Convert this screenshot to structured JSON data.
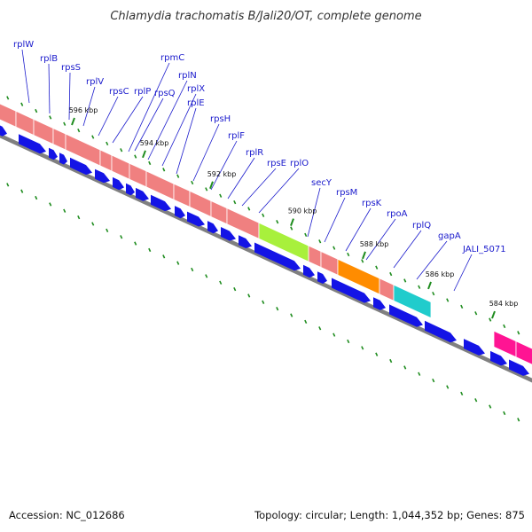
{
  "title": "Chlamydia trachomatis B/Jali20/OT, complete genome",
  "genes": [
    {
      "label": "rplW"
    },
    {
      "label": "rplB"
    },
    {
      "label": "rpsS"
    },
    {
      "label": "rplV"
    },
    {
      "label": "rpsC"
    },
    {
      "label": "rpmC"
    },
    {
      "label": "rplP"
    },
    {
      "label": "rpsQ"
    },
    {
      "label": "rplN"
    },
    {
      "label": "rplX"
    },
    {
      "label": "rplE"
    },
    {
      "label": "rpsH"
    },
    {
      "label": "rplF"
    },
    {
      "label": "rplR"
    },
    {
      "label": "rpsE"
    },
    {
      "label": "rplO"
    },
    {
      "label": "secY"
    },
    {
      "label": "rpsM"
    },
    {
      "label": "rpsK"
    },
    {
      "label": "rpoA"
    },
    {
      "label": "rplQ"
    },
    {
      "label": "gapA"
    },
    {
      "label": "JALI_5071"
    }
  ],
  "ticks": [
    {
      "label": "596 kbp"
    },
    {
      "label": "594 kbp"
    },
    {
      "label": "592 kbp"
    },
    {
      "label": "590 kbp"
    },
    {
      "label": "588 kbp"
    },
    {
      "label": "586 kbp"
    },
    {
      "label": "584 kbp"
    }
  ],
  "colors": {
    "ribosomal": "#f08080",
    "secY": "#a8f03c",
    "rpoA": "#ff8c00",
    "gapA": "#20cccc",
    "magenta": "#ff1493",
    "cds": "#1414e6",
    "backbone": "#808080",
    "tick": "#1e8c1e",
    "label": "#1a1acc"
  },
  "footer": {
    "accession": "Accession: NC_012686",
    "summary": "Topology: circular; Length: 1,044,352 bp; Genes: 875"
  }
}
